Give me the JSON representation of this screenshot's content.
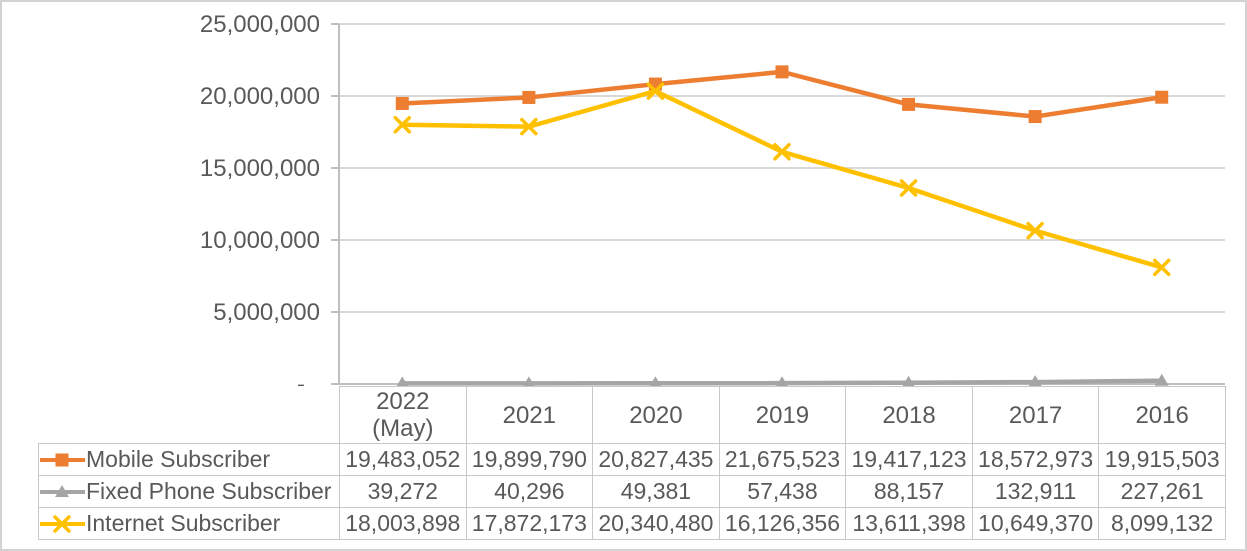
{
  "chart_data": {
    "type": "line",
    "title": "",
    "categories": [
      "2022 (May)",
      "2021",
      "2020",
      "2019",
      "2018",
      "2017",
      "2016"
    ],
    "category_labels_display": [
      [
        "2022",
        "(May)"
      ],
      [
        "2021"
      ],
      [
        "2020"
      ],
      [
        "2019"
      ],
      [
        "2018"
      ],
      [
        "2017"
      ],
      [
        "2016"
      ]
    ],
    "series": [
      {
        "name": "Mobile Subscriber",
        "color": "#ED7D31",
        "marker": "square",
        "values": [
          19483052,
          19899790,
          20827435,
          21675523,
          19417123,
          18572973,
          19915503
        ],
        "formatted": [
          "19,483,052",
          "19,899,790",
          "20,827,435",
          "21,675,523",
          "19,417,123",
          "18,572,973",
          "19,915,503"
        ]
      },
      {
        "name": "Fixed Phone Subscriber",
        "color": "#A5A5A5",
        "marker": "triangle",
        "values": [
          39272,
          40296,
          49381,
          57438,
          88157,
          132911,
          227261
        ],
        "formatted": [
          "39,272",
          "40,296",
          "49,381",
          "57,438",
          "88,157",
          "132,911",
          "227,261"
        ]
      },
      {
        "name": "Internet Subscriber",
        "color": "#FFC000",
        "marker": "x",
        "values": [
          18003898,
          17872173,
          20340480,
          16126356,
          13611398,
          10649370,
          8099132
        ],
        "formatted": [
          "18,003,898",
          "17,872,173",
          "20,340,480",
          "16,126,356",
          "13,611,398",
          "10,649,370",
          "8,099,132"
        ]
      }
    ],
    "y_axis": {
      "min": 0,
      "max": 25000000,
      "step": 5000000,
      "tick_labels": [
        "-",
        "5,000,000",
        "10,000,000",
        "15,000,000",
        "20,000,000",
        "25,000,000"
      ]
    },
    "gridlines": true,
    "legend_position": "data-table-left",
    "data_table_shown": true
  },
  "palette": {
    "text": "#595959",
    "gridline": "#d9d9d9",
    "axis": "#bfbfbf",
    "table_border": "#c8c8c8",
    "background": "#ffffff",
    "frame": "#d3d3d3"
  }
}
